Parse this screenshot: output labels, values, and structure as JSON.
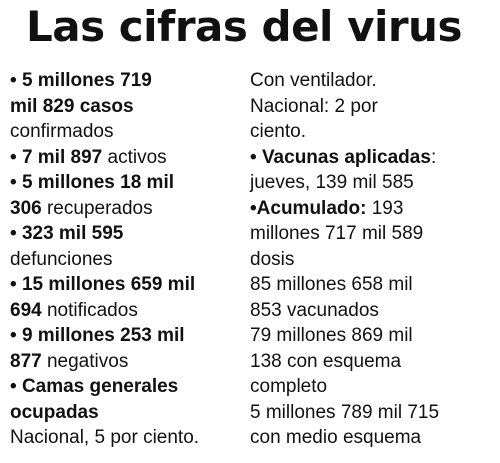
{
  "title": "Las cifras del virus",
  "left": {
    "casos": {
      "bullet": "• ",
      "num_l1": "5 millones 719",
      "num_l2": "mil 829 casos",
      "label": "confirmados"
    },
    "activos": {
      "bullet": "• ",
      "num": "7 mil 897",
      "label": " activos"
    },
    "recuperados": {
      "bullet": "• ",
      "num_l1": "5 millones 18 mil",
      "num_l2": "306",
      "label_l2": " recuperados"
    },
    "defunciones": {
      "bullet": "• ",
      "num": "323 mil 595",
      "label": "defunciones"
    },
    "notificados": {
      "bullet": "• ",
      "num_l1": "15 millones 659 mil",
      "num_l2": "694",
      "label_l2": " notificados"
    },
    "negativos": {
      "bullet": "• ",
      "num_l1": "9 millones 253 mil",
      "num_l2": "877",
      "label_l2": " negativos"
    },
    "camas": {
      "bullet": "• ",
      "head_l1": "Camas generales",
      "head_l2": "ocupadas",
      "text": "Nacional, 5 por ciento."
    }
  },
  "right": {
    "ventilador": {
      "l1": "Con ventilador.",
      "l2": "Nacional: 2 por",
      "l3": "ciento."
    },
    "vacunas": {
      "bullet": "• ",
      "head": "Vacunas aplicadas",
      "colon": ":",
      "text": "jueves, 139 mil 585"
    },
    "acumulado": {
      "bullet": "•",
      "head": "Acumulado:",
      "num": " 193",
      "l2": "millones 717 mil 589",
      "l3": "dosis"
    },
    "vacunados": {
      "l1": "85 millones 658 mil",
      "l2": "853 vacunados"
    },
    "esquema_completo": {
      "l1": "79 millones 869 mil",
      "l2": "138 con esquema",
      "l3": "completo"
    },
    "medio_esquema": {
      "l1": "5 millones 789 mil 715",
      "l2": "con medio esquema"
    }
  }
}
